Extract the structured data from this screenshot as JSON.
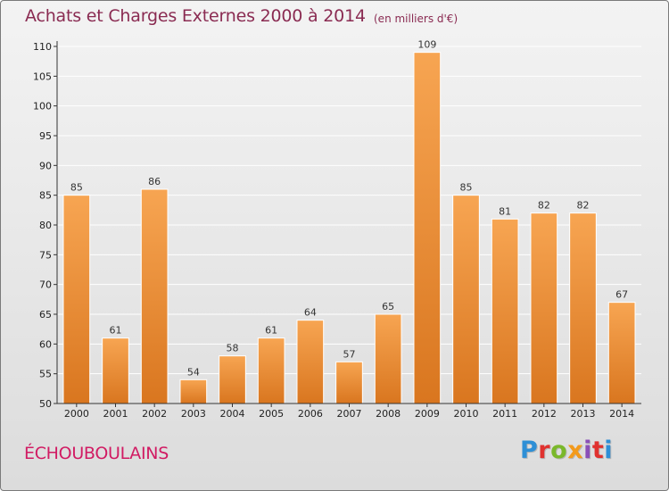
{
  "header": {
    "title": "Achats et Charges Externes 2000 à 2014",
    "subtitle": "(en milliers d'€)"
  },
  "footer": {
    "commune": "ÉCHOUBOULAINS",
    "logo_text": "Proxiti",
    "logo_colors": [
      "#2e8fd6",
      "#e0322f",
      "#7ab82b",
      "#f39a1b",
      "#8a4fb8",
      "#e0322f",
      "#2e8fd6"
    ]
  },
  "colors": {
    "bar_light": "#f7a552",
    "bar_dark": "#d9761f",
    "axis": "#333333",
    "grid": "#ffffff"
  },
  "chart_data": {
    "type": "bar",
    "title": "Achats et Charges Externes 2000 à 2014",
    "subtitle": "(en milliers d'€)",
    "xlabel": "",
    "ylabel": "",
    "categories": [
      "2000",
      "2001",
      "2002",
      "2003",
      "2004",
      "2005",
      "2006",
      "2007",
      "2008",
      "2009",
      "2010",
      "2011",
      "2012",
      "2013",
      "2014"
    ],
    "values": [
      85,
      61,
      86,
      54,
      58,
      61,
      64,
      57,
      65,
      109,
      85,
      81,
      82,
      82,
      67
    ],
    "ylim": [
      50,
      110
    ],
    "yticks": [
      50,
      55,
      60,
      65,
      70,
      75,
      80,
      85,
      90,
      95,
      100,
      105,
      110
    ],
    "grid": true,
    "legend": "none"
  }
}
